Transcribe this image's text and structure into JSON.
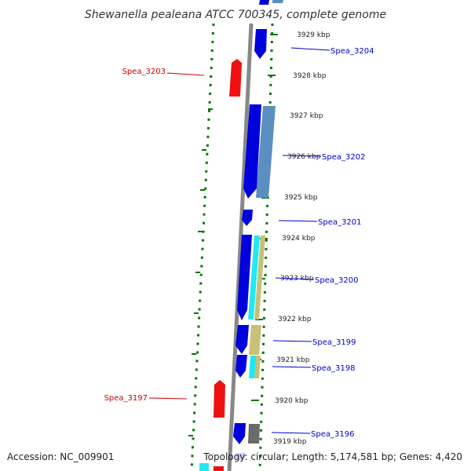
{
  "title": "Shewanella pealeana ATCC 700345, complete genome",
  "footer": {
    "accession": "Accession: NC_009901",
    "stats": "Topology: circular; Length: 5,174,581 bp; Genes: 4,420"
  },
  "colors": {
    "forward": "#0000dd",
    "reverse": "#ee1111",
    "blue_label": "#0000cc",
    "red_label": "#cc0000",
    "dots": "#007700",
    "backbone": "#888888",
    "cog_steel": "#5a8fc0",
    "cog_cyan": "#22e8f0",
    "cog_khaki": "#c8c07a",
    "cog_gray": "#6a6a6a"
  },
  "ticks": [
    "3929 kbp",
    "3928 kbp",
    "3927 kbp",
    "3926 kbp",
    "3925 kbp",
    "3924 kbp",
    "3923 kbp",
    "3922 kbp",
    "3921 kbp",
    "3920 kbp",
    "3919 kbp"
  ],
  "gene_labels": {
    "spea_3204": "Spea_3204",
    "spea_3203": "Spea_3203",
    "spea_3202": "Spea_3202",
    "spea_3201": "Spea_3201",
    "spea_3200": "Spea_3200",
    "spea_3199": "Spea_3199",
    "spea_3198": "Spea_3198",
    "spea_3197": "Spea_3197",
    "spea_3196": "Spea_3196"
  },
  "icons": {
    "gene_arrow": "pentagon-arrow"
  }
}
